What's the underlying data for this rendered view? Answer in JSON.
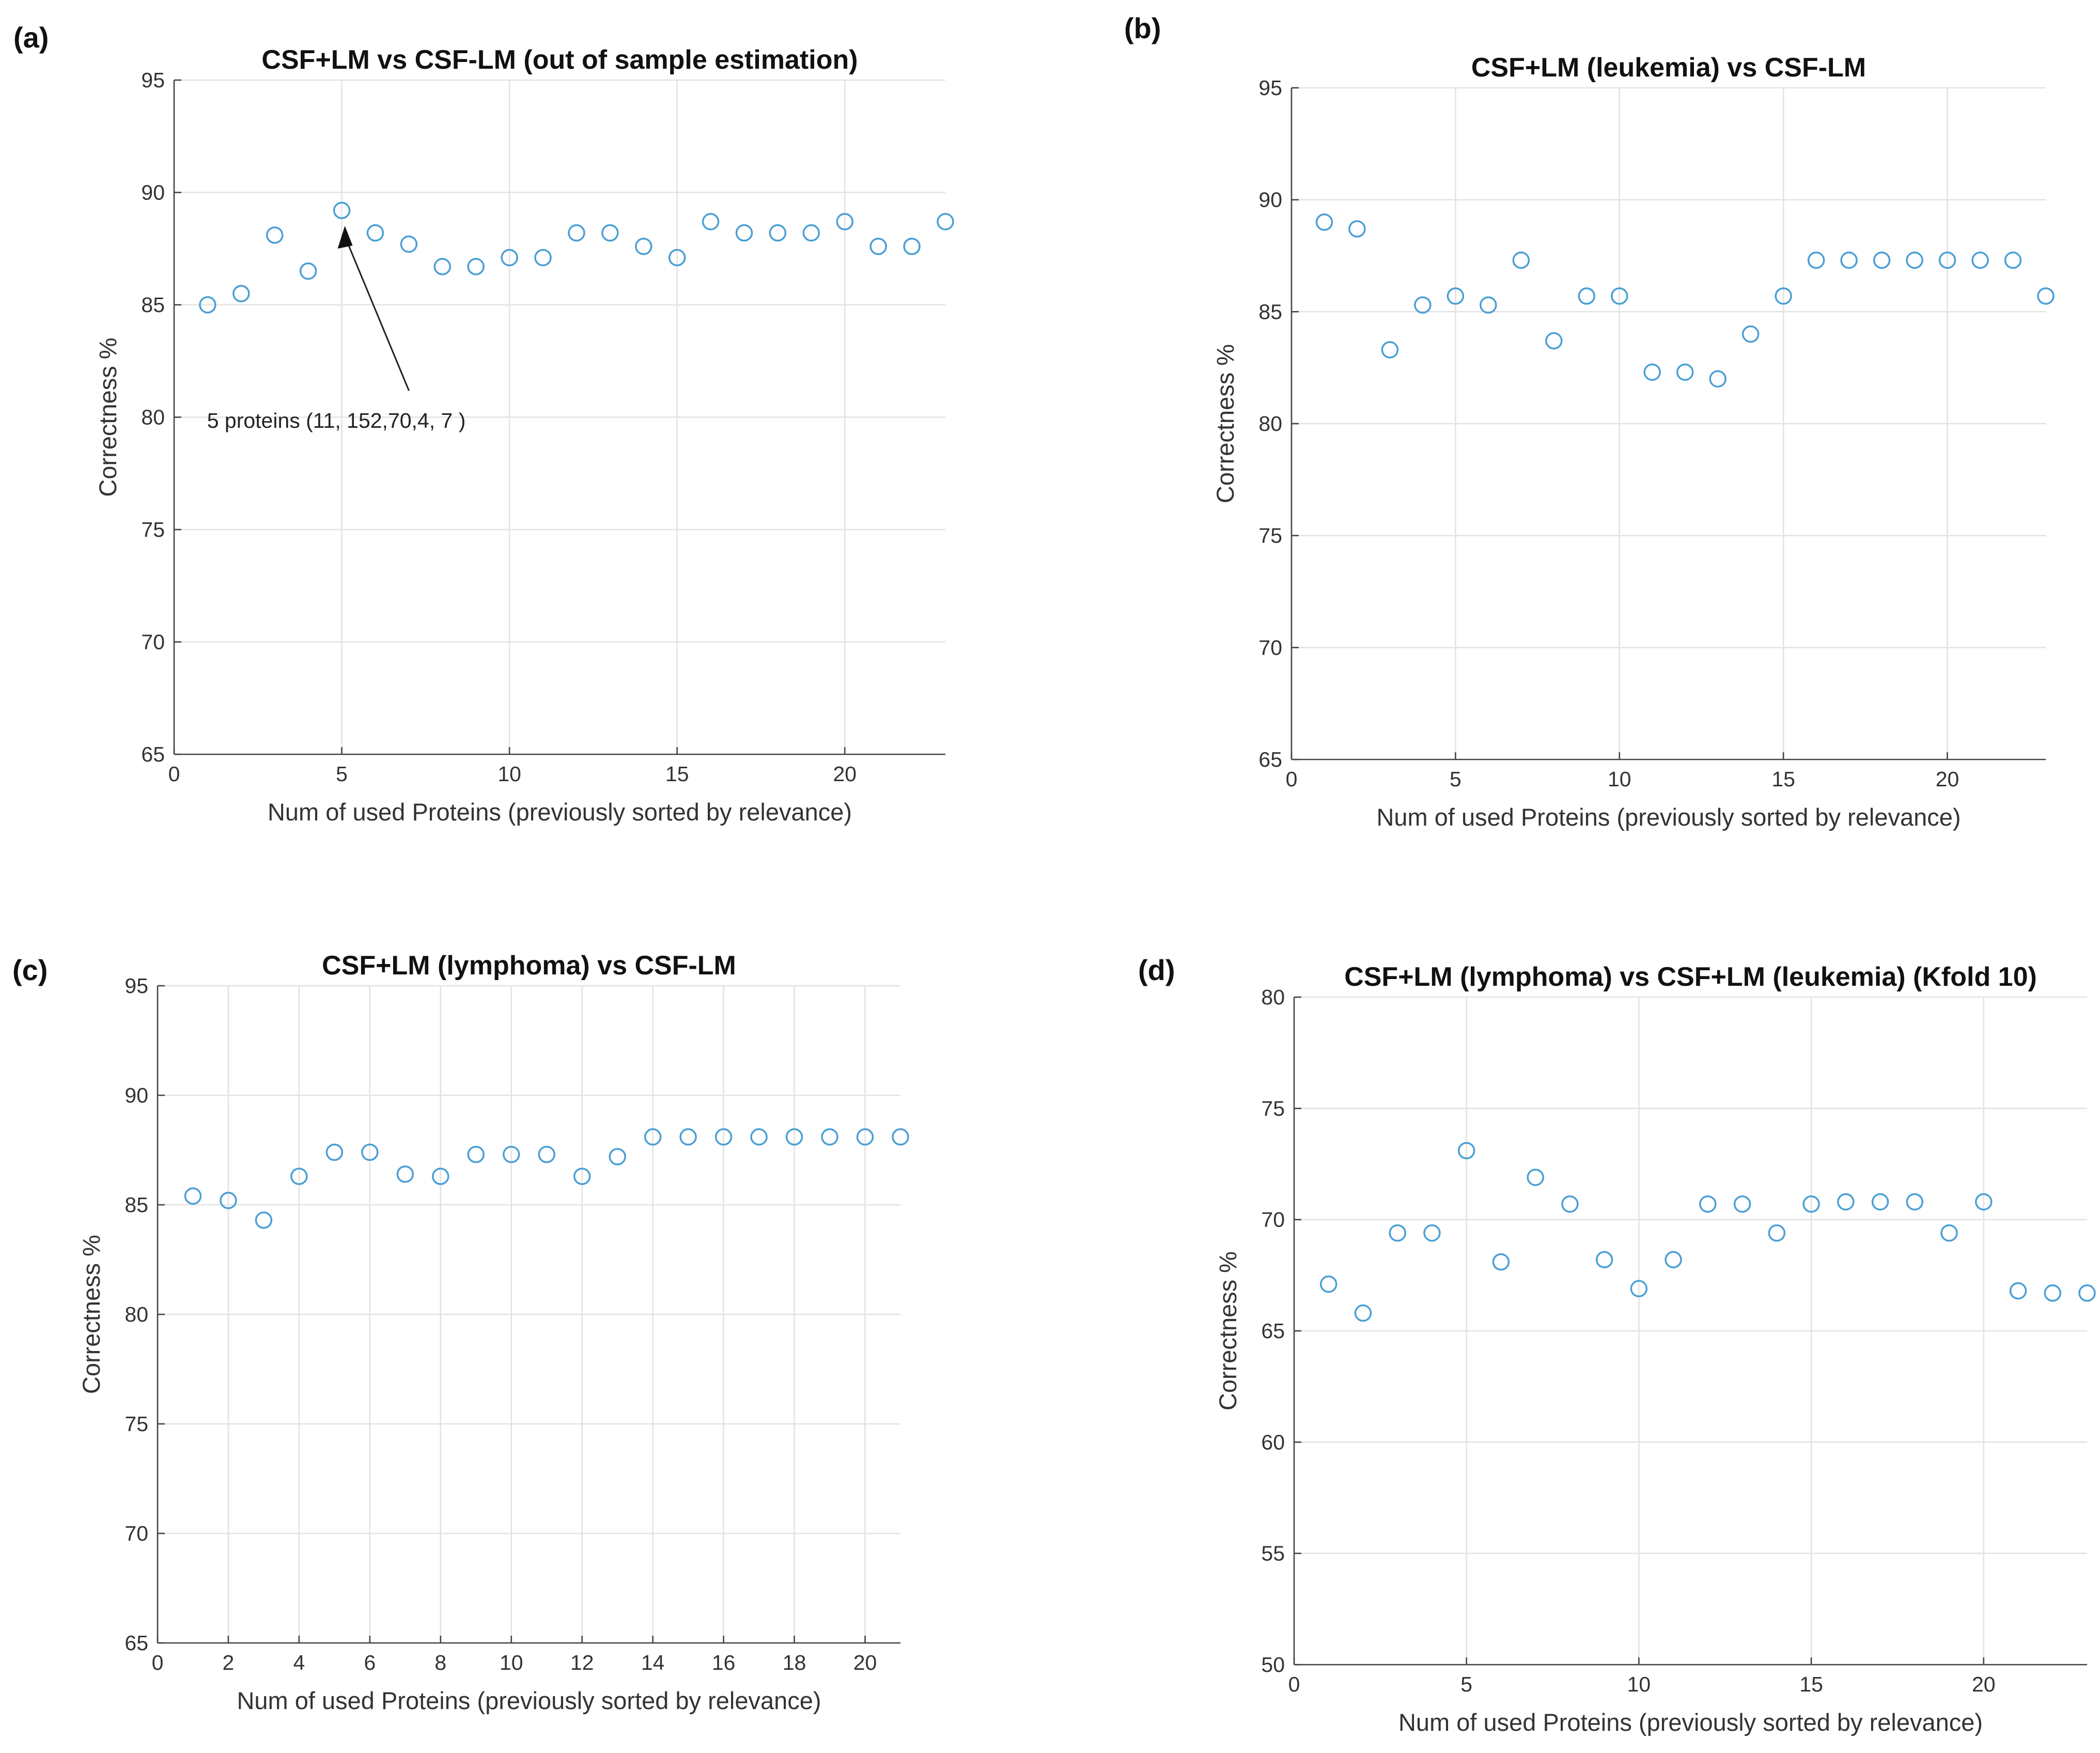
{
  "figure": {
    "panel_labels": [
      "(a)",
      "(b)",
      "(c)",
      "(d)"
    ],
    "marker_color": "#4a9fd5"
  },
  "chart_data": [
    {
      "type": "scatter",
      "title": "CSF+LM vs CSF-LM (out of sample estimation)",
      "xlabel": "Num of used Proteins (previously sorted by relevance)",
      "ylabel": "Correctness %",
      "xlim": [
        0,
        23
      ],
      "ylim": [
        65,
        95
      ],
      "xticks": [
        0,
        5,
        10,
        15,
        20
      ],
      "yticks": [
        65,
        70,
        75,
        80,
        85,
        90,
        95
      ],
      "grid": true,
      "x": [
        1,
        2,
        3,
        4,
        5,
        6,
        7,
        8,
        9,
        10,
        11,
        12,
        13,
        14,
        15,
        16,
        17,
        18,
        19,
        20,
        21,
        22,
        23
      ],
      "y": [
        85.0,
        85.5,
        88.1,
        86.5,
        89.2,
        88.2,
        87.7,
        86.7,
        86.7,
        87.1,
        87.1,
        88.2,
        88.2,
        87.6,
        87.1,
        88.7,
        88.2,
        88.2,
        88.2,
        88.7,
        87.6,
        87.6,
        88.7
      ],
      "annotation": {
        "text": "5 proteins (11, 152,70,4, 7 )",
        "x": 5,
        "y": 89.2,
        "text_x": 5.3,
        "text_y": 79.8
      }
    },
    {
      "type": "scatter",
      "title": "CSF+LM (leukemia) vs CSF-LM",
      "xlabel": "Num of used Proteins (previously sorted by relevance)",
      "ylabel": "Correctness %",
      "xlim": [
        0,
        23
      ],
      "ylim": [
        65,
        95
      ],
      "xticks": [
        0,
        5,
        10,
        15,
        20
      ],
      "yticks": [
        65,
        70,
        75,
        80,
        85,
        90,
        95
      ],
      "grid": true,
      "x": [
        1,
        2,
        3,
        4,
        5,
        6,
        7,
        8,
        9,
        10,
        11,
        12,
        13,
        14,
        15,
        16,
        17,
        18,
        19,
        20,
        21,
        22,
        23
      ],
      "y": [
        89.0,
        88.7,
        83.3,
        85.3,
        85.7,
        85.3,
        87.3,
        83.7,
        85.7,
        85.7,
        82.3,
        82.3,
        82.0,
        84.0,
        85.7,
        87.3,
        87.3,
        87.3,
        87.3,
        87.3,
        87.3,
        87.3,
        85.7
      ]
    },
    {
      "type": "scatter",
      "title": "CSF+LM (lymphoma) vs CSF-LM",
      "xlabel": "Num of used Proteins (previously sorted by relevance)",
      "ylabel": "Correctness %",
      "xlim": [
        0,
        21
      ],
      "ylim": [
        65,
        95
      ],
      "xticks": [
        0,
        2,
        4,
        6,
        8,
        10,
        12,
        14,
        16,
        18,
        20
      ],
      "yticks": [
        65,
        70,
        75,
        80,
        85,
        90,
        95
      ],
      "grid": true,
      "x": [
        1,
        2,
        3,
        4,
        5,
        6,
        7,
        8,
        9,
        10,
        11,
        12,
        13,
        14,
        15,
        16,
        17,
        18,
        19,
        20,
        21
      ],
      "y": [
        85.4,
        85.2,
        84.3,
        86.3,
        87.4,
        87.4,
        86.4,
        86.3,
        87.3,
        87.3,
        87.3,
        86.3,
        87.2,
        88.1,
        88.1,
        88.1,
        88.1,
        88.1,
        88.1,
        88.1,
        88.1
      ]
    },
    {
      "type": "scatter",
      "title": "CSF+LM (lymphoma) vs CSF+LM (leukemia) (Kfold 10)",
      "xlabel": "Num of used Proteins (previously sorted by relevance)",
      "ylabel": "Correctness %",
      "xlim": [
        0,
        23
      ],
      "ylim": [
        50,
        80
      ],
      "xticks": [
        0,
        5,
        10,
        15,
        20
      ],
      "yticks": [
        50,
        55,
        60,
        65,
        70,
        75,
        80
      ],
      "grid": true,
      "x": [
        1,
        2,
        3,
        4,
        5,
        6,
        7,
        8,
        9,
        10,
        11,
        12,
        13,
        14,
        15,
        16,
        17,
        18,
        19,
        20,
        21,
        22,
        23
      ],
      "y": [
        67.1,
        65.8,
        69.4,
        69.4,
        73.1,
        68.1,
        71.9,
        70.7,
        68.2,
        66.9,
        68.2,
        70.7,
        70.7,
        69.4,
        70.7,
        70.8,
        70.8,
        70.8,
        69.4,
        70.8,
        66.8,
        66.7,
        66.7
      ]
    }
  ]
}
